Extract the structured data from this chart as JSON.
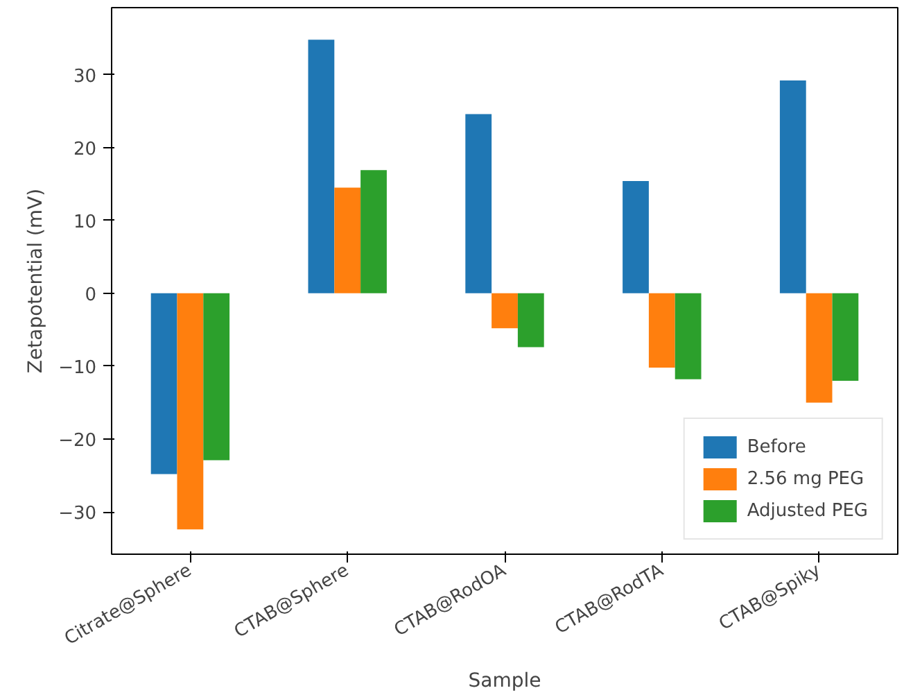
{
  "chart_data": {
    "type": "bar",
    "xlabel": "Sample",
    "ylabel": "Zetapotential (mV)",
    "categories": [
      "Citrate@Sphere",
      "CTAB@Sphere",
      "CTAB@RodOA",
      "CTAB@RodTA",
      "CTAB@Spiky"
    ],
    "series": [
      {
        "name": "Before",
        "color": "#1f77b4",
        "values": [
          -24.8,
          34.8,
          24.6,
          15.4,
          29.2
        ]
      },
      {
        "name": "2.56 mg PEG",
        "color": "#ff7f0e",
        "values": [
          -32.4,
          14.5,
          -4.8,
          -10.2,
          -15.0
        ]
      },
      {
        "name": "Adjusted PEG",
        "color": "#2ca02c",
        "values": [
          -22.9,
          16.9,
          -7.4,
          -11.8,
          -12.0
        ]
      }
    ],
    "ylim": [
      -35.8,
      39.2
    ],
    "yticks": [
      -30,
      -20,
      -10,
      0,
      10,
      20,
      30
    ],
    "grid": false,
    "legend": "bottom right"
  }
}
